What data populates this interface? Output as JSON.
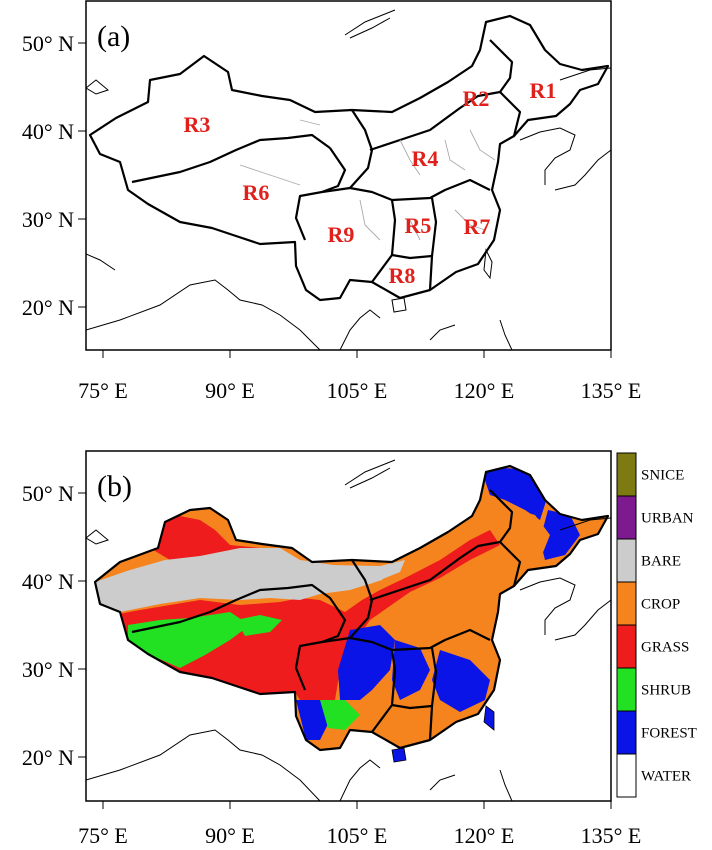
{
  "panel_a": {
    "label": "(a)",
    "regions": [
      "R1",
      "R2",
      "R3",
      "R4",
      "R5",
      "R6",
      "R7",
      "R8",
      "R9"
    ],
    "x_ticks": [
      "75° E",
      "90° E",
      "105° E",
      "120° E",
      "135° E"
    ],
    "y_ticks": [
      "50° N",
      "40° N",
      "30° N",
      "20° N"
    ]
  },
  "panel_b": {
    "label": "(b)",
    "x_ticks": [
      "75° E",
      "90° E",
      "105° E",
      "120° E",
      "135° E"
    ],
    "y_ticks": [
      "50° N",
      "40° N",
      "30° N",
      "20° N"
    ],
    "legend": [
      {
        "name": "SNICE",
        "color": "#7c7a10"
      },
      {
        "name": "URBAN",
        "color": "#7d1a90"
      },
      {
        "name": "BARE",
        "color": "#cccccc"
      },
      {
        "name": "CROP",
        "color": "#f5841f"
      },
      {
        "name": "GRASS",
        "color": "#ee1c1c"
      },
      {
        "name": "SHRUB",
        "color": "#22e022"
      },
      {
        "name": "FOREST",
        "color": "#0a14e6"
      },
      {
        "name": "WATER",
        "color": "#ffffff"
      }
    ]
  }
}
